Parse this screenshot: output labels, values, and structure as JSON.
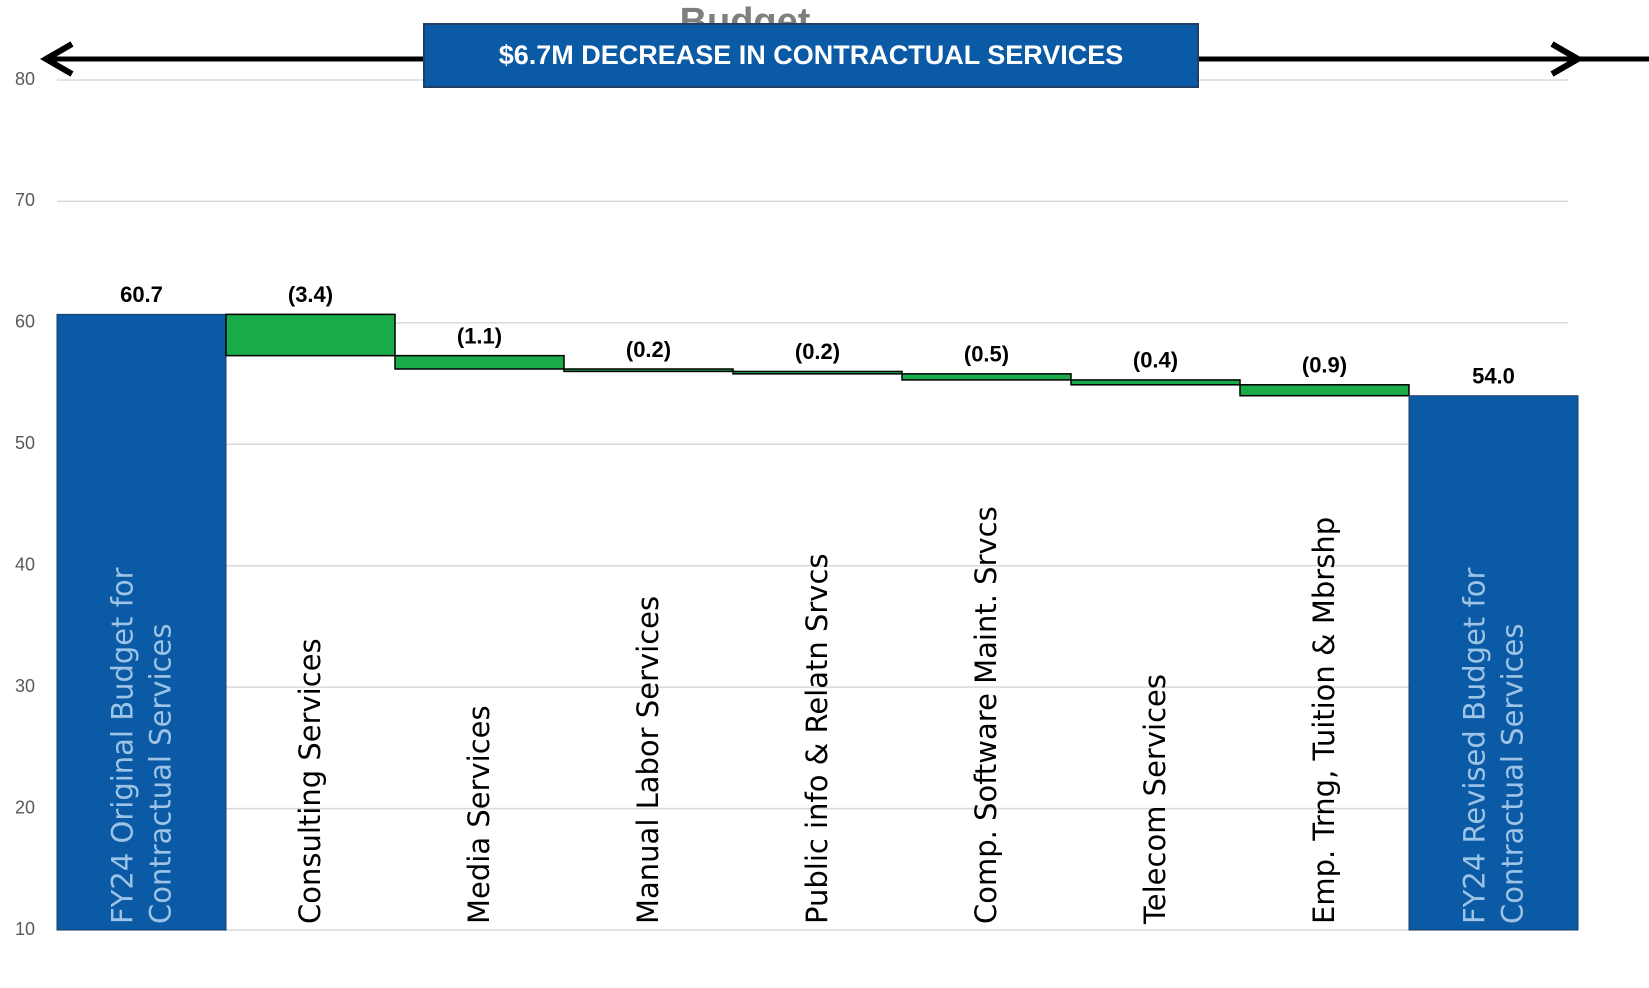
{
  "chart_data": {
    "type": "waterfall",
    "title": "Budget",
    "annotation": "$6.7M DECREASE IN CONTRACTUAL SERVICES",
    "categories": [
      "FY24 Original Budget for Contractual Services",
      "Consulting Services",
      "Media Services",
      "Manual Labor Services",
      "Public info & Relatn Srvcs",
      "Comp. Software Maint. Srvcs",
      "Telecom Services",
      "Emp. Trng, Tuition & Mbrshp",
      "FY24 Revised Budget for Contractual Services"
    ],
    "values": [
      60.7,
      -3.4,
      -1.1,
      -0.2,
      -0.2,
      -0.5,
      -0.4,
      -0.9,
      54.0
    ],
    "value_labels": [
      "60.7",
      "(3.4)",
      "(1.1)",
      "(0.2)",
      "(0.2)",
      "(0.5)",
      "(0.4)",
      "(0.9)",
      "54.0"
    ],
    "measure": [
      "total",
      "relative",
      "relative",
      "relative",
      "relative",
      "relative",
      "relative",
      "relative",
      "total"
    ],
    "total_color": "#0b5aa6",
    "delta_color": "#1aab4a",
    "ylim": [
      10,
      80
    ],
    "yticks": [
      10,
      20,
      30,
      40,
      50,
      60,
      70,
      80
    ],
    "grid": true
  }
}
